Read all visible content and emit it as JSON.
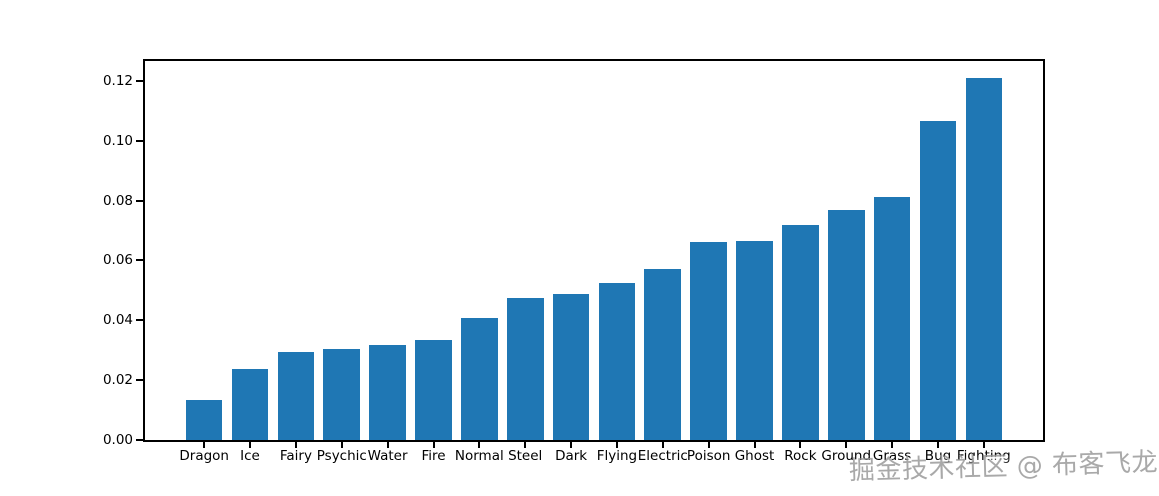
{
  "chart_data": {
    "type": "bar",
    "categories": [
      "Dragon",
      "Ice",
      "Fairy",
      "Psychic",
      "Water",
      "Fire",
      "Normal",
      "Steel",
      "Dark",
      "Flying",
      "Electric",
      "Poison",
      "Ghost",
      "Rock",
      "Ground",
      "Grass",
      "Bug",
      "Fighting"
    ],
    "values": [
      0.0135,
      0.0236,
      0.0295,
      0.0304,
      0.0316,
      0.0334,
      0.0408,
      0.0474,
      0.0489,
      0.0524,
      0.0571,
      0.066,
      0.0665,
      0.0718,
      0.0768,
      0.0812,
      0.1066,
      0.1208
    ],
    "yticks": [
      0,
      0.02,
      0.04,
      0.06,
      0.08,
      0.1,
      0.12
    ],
    "ytick_labels": [
      "0.00",
      "0.02",
      "0.04",
      "0.06",
      "0.08",
      "0.10",
      "0.12"
    ],
    "ylim": [
      0,
      0.1266
    ],
    "bar_color": "#1f77b4",
    "axis_color": "#000000",
    "grid": false,
    "legend": "none"
  },
  "watermark": {
    "text": "掘金技术社区 @ 布客飞龙",
    "color": "#969696"
  }
}
